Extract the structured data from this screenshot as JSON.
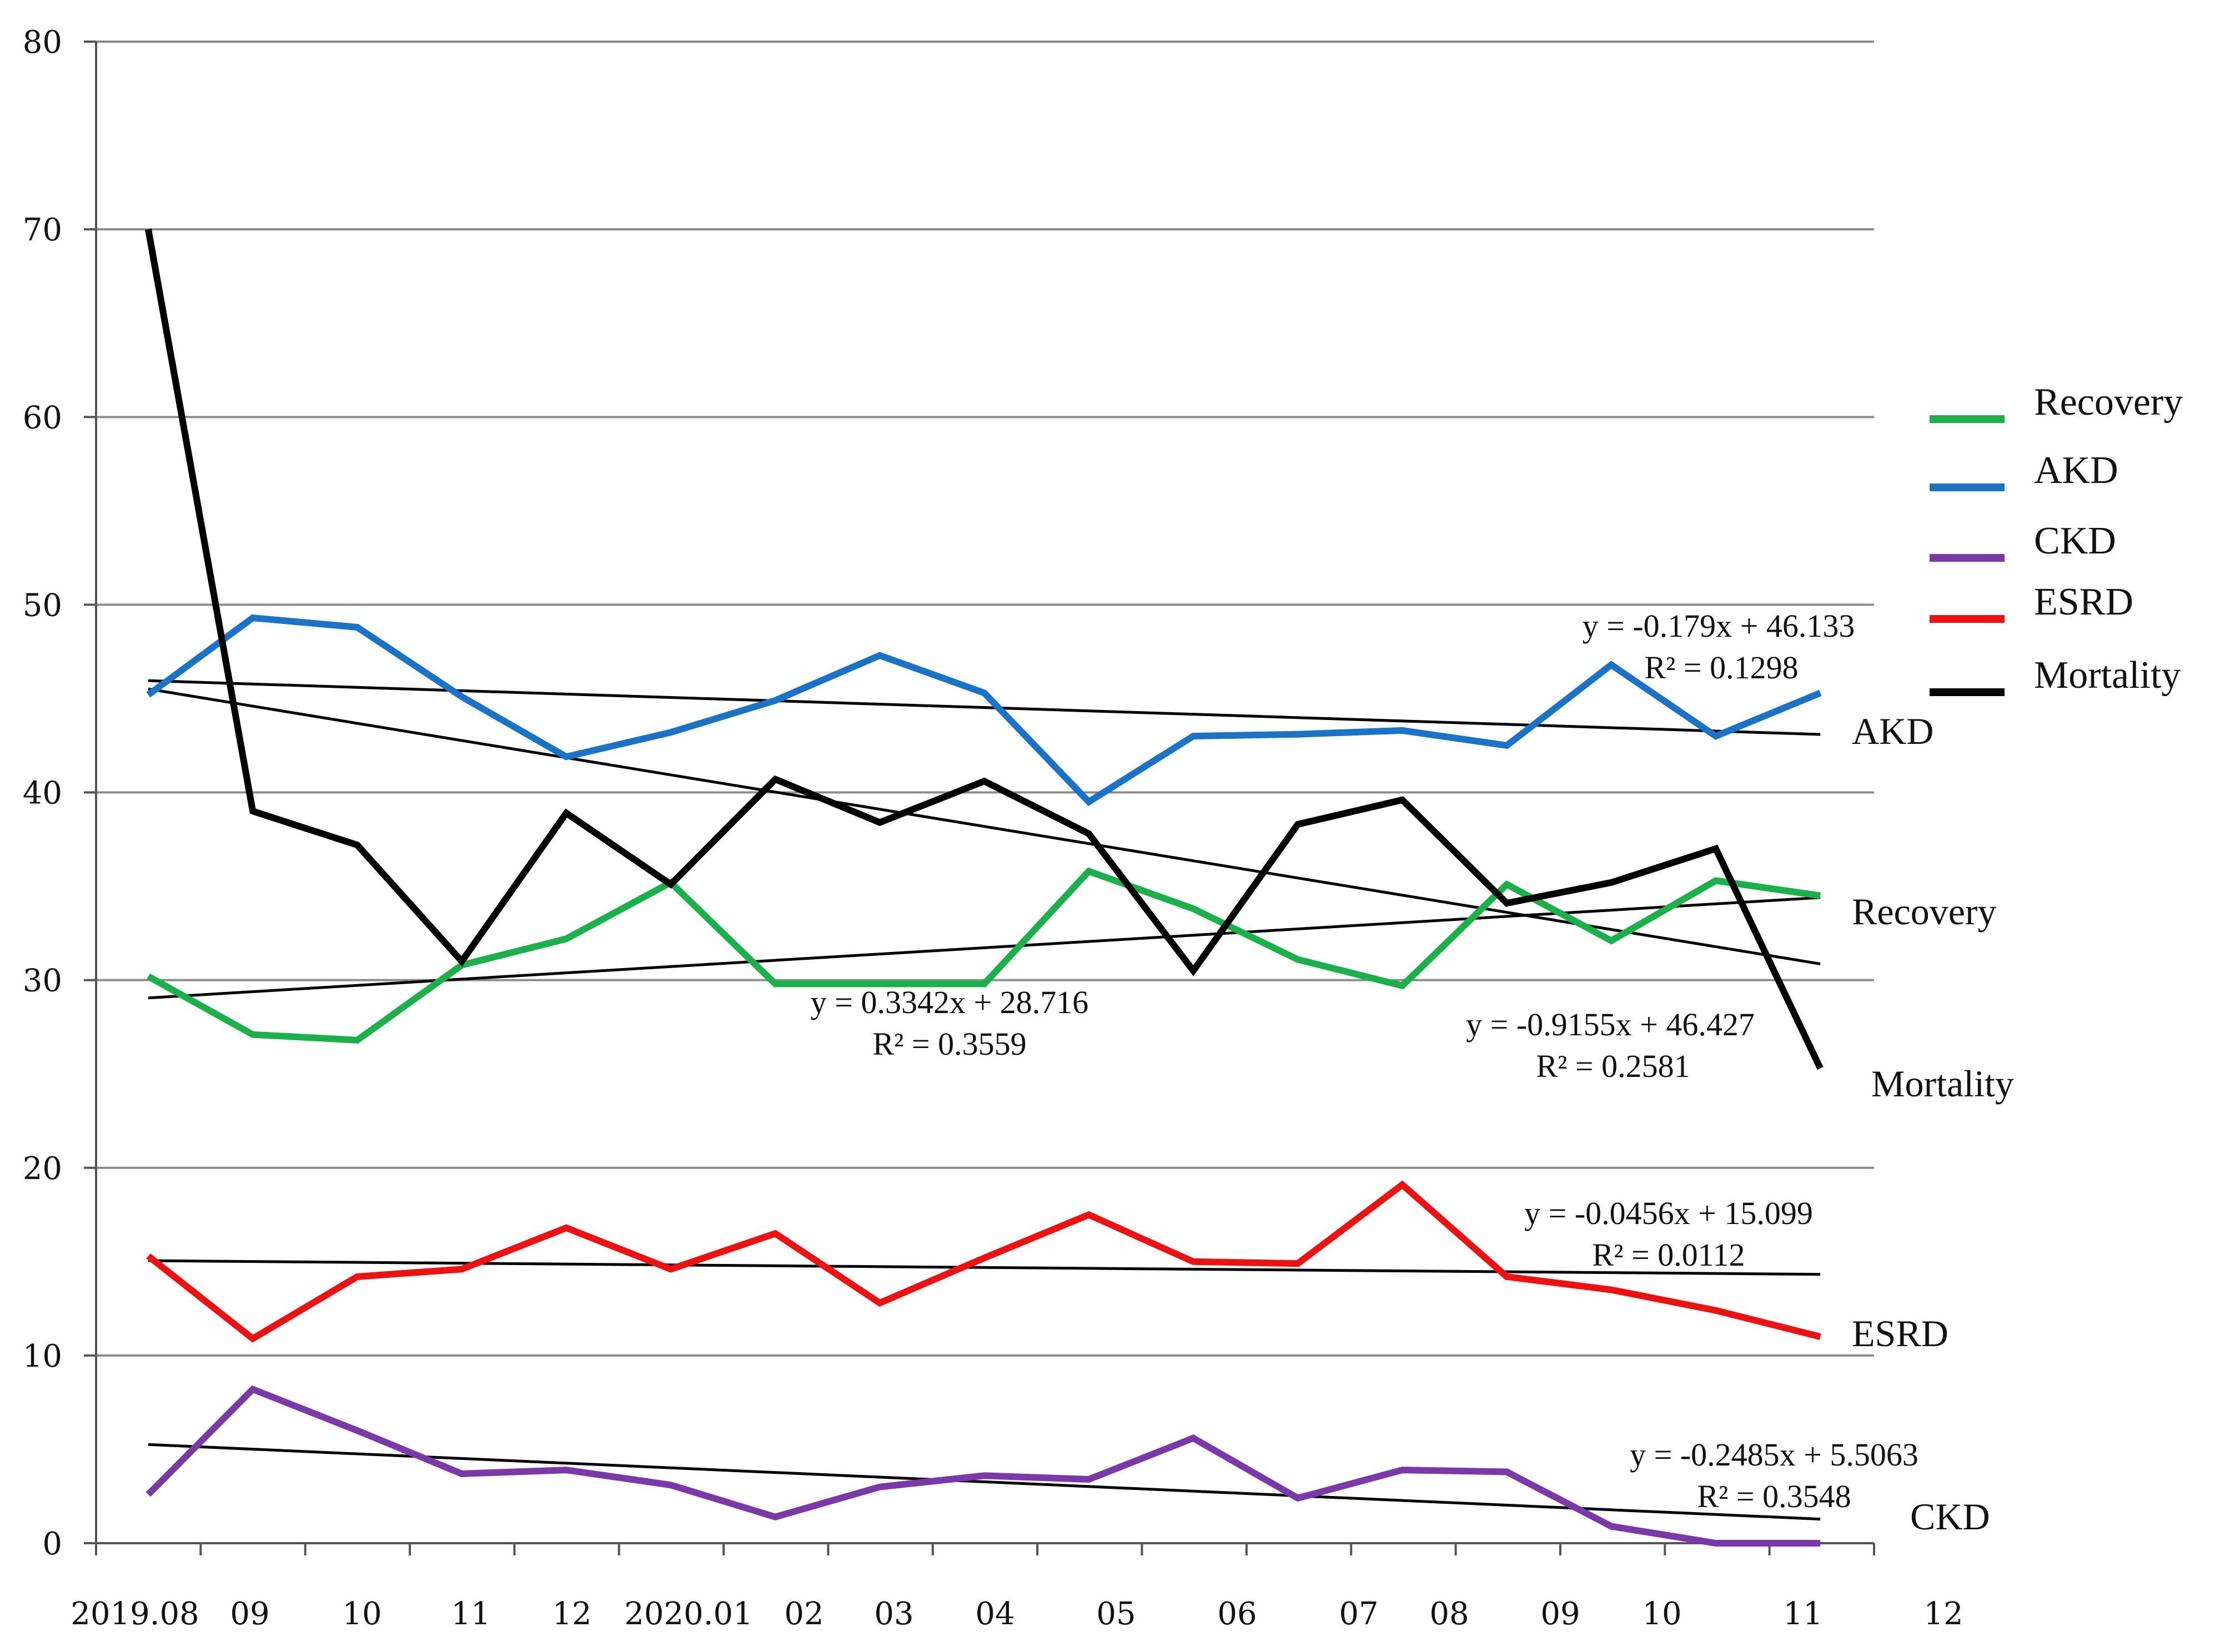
{
  "chart_data": {
    "type": "line",
    "title": "",
    "xlabel": "",
    "ylabel": "",
    "ylim": [
      0,
      80
    ],
    "yticks": [
      0,
      10,
      20,
      30,
      40,
      50,
      60,
      70,
      80
    ],
    "grid": true,
    "legend_position": "right",
    "x_tick_labels": [
      "2019.08",
      "09",
      "10",
      "11",
      "12",
      "2020.01",
      "02",
      "03",
      "04",
      "05",
      "06",
      "07",
      "08",
      "09",
      "10",
      "11",
      "12"
    ],
    "series": [
      {
        "name": "Recovery",
        "color": "#1ab04a",
        "values": [
          30.2,
          27.1,
          26.8,
          30.8,
          32.2,
          35.2,
          29.8,
          29.8,
          29.8,
          35.8,
          33.8,
          31.1,
          29.7,
          35.1,
          32.1,
          35.3,
          34.5
        ]
      },
      {
        "name": "AKD",
        "color": "#1a73c6",
        "values": [
          45.2,
          49.3,
          48.8,
          45.1,
          41.9,
          43.2,
          44.9,
          47.3,
          45.3,
          39.5,
          43.0,
          43.1,
          43.3,
          42.5,
          46.8,
          43.0,
          45.3
        ]
      },
      {
        "name": "CKD",
        "color": "#7a38a8",
        "values": [
          2.6,
          8.2,
          6.0,
          3.7,
          3.9,
          3.1,
          1.4,
          3.0,
          3.6,
          3.4,
          5.6,
          2.4,
          3.9,
          3.8,
          0.9,
          0.0,
          0.0
        ]
      },
      {
        "name": "ESRD",
        "color": "#ee1111",
        "values": [
          15.3,
          10.9,
          14.2,
          14.6,
          16.8,
          14.6,
          16.5,
          12.8,
          15.2,
          17.5,
          15.0,
          14.9,
          19.1,
          14.2,
          13.5,
          12.4,
          11.0
        ]
      },
      {
        "name": "Mortality",
        "color": "#000000",
        "values": [
          70.0,
          39.0,
          37.2,
          31.0,
          38.9,
          35.1,
          40.7,
          38.4,
          40.6,
          37.8,
          30.5,
          38.3,
          39.6,
          34.1,
          35.2,
          37.0,
          25.3
        ]
      }
    ],
    "trendlines": [
      {
        "series": "AKD",
        "slope": -0.179,
        "intercept": 46.133,
        "equation": "y = -0.179x + 46.133",
        "r2": "R² = 0.1298"
      },
      {
        "series": "Recovery",
        "slope": 0.3342,
        "intercept": 28.716,
        "equation": "y = 0.3342x + 28.716",
        "r2": "R² = 0.3559"
      },
      {
        "series": "Mortality",
        "slope": -0.9155,
        "intercept": 46.427,
        "equation": "y = -0.9155x + 46.427",
        "r2": "R² = 0.2581"
      },
      {
        "series": "ESRD",
        "slope": -0.0456,
        "intercept": 15.099,
        "equation": "y = -0.0456x + 15.099",
        "r2": "R² = 0.0112"
      },
      {
        "series": "CKD",
        "slope": -0.2485,
        "intercept": 5.5063,
        "equation": "y = -0.2485x + 5.5063",
        "r2": "R² = 0.3548"
      }
    ],
    "end_labels": [
      "AKD",
      "Recovery",
      "Mortality",
      "ESRD",
      "CKD"
    ],
    "legend": [
      "Recovery",
      "AKD",
      "CKD",
      "ESRD",
      "Mortality"
    ]
  }
}
